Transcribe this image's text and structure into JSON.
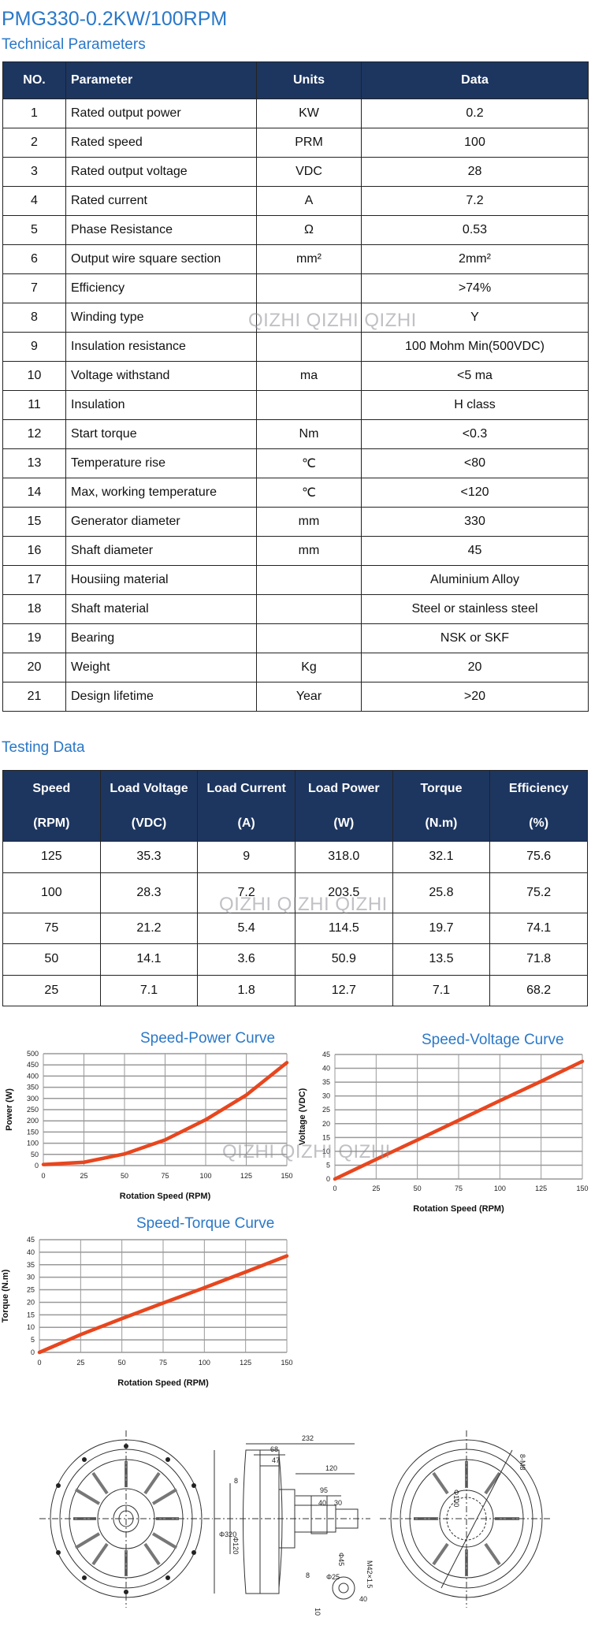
{
  "header": {
    "title": "PMG330-0.2KW/100RPM",
    "subtitle": "Technical Parameters"
  },
  "watermark": "QIZHI QIZHI QIZHI",
  "colors": {
    "title": "#2a78c8",
    "table_header": "#1d3660",
    "curve": "#e8461e"
  },
  "tech_table": {
    "columns": [
      "NO.",
      "Parameter",
      "Units",
      "Data"
    ],
    "rows": [
      [
        "1",
        "Rated output power",
        "KW",
        "0.2"
      ],
      [
        "2",
        "Rated speed",
        "PRM",
        "100"
      ],
      [
        "3",
        "Rated output voltage",
        "VDC",
        "28"
      ],
      [
        "4",
        "Rated current",
        "A",
        "7.2"
      ],
      [
        "5",
        "Phase Resistance",
        "Ω",
        "0.53"
      ],
      [
        "6",
        "Output wire square section",
        "mm²",
        "2mm²"
      ],
      [
        "7",
        "Efficiency",
        "",
        ">74%"
      ],
      [
        "8",
        "Winding type",
        "",
        "Y"
      ],
      [
        "9",
        "Insulation resistance",
        "",
        "100 Mohm Min(500VDC)"
      ],
      [
        "10",
        "Voltage withstand",
        "ma",
        "<5 ma"
      ],
      [
        "11",
        "Insulation",
        "",
        "H class"
      ],
      [
        "12",
        "Start torque",
        "Nm",
        "<0.3"
      ],
      [
        "13",
        "Temperature rise",
        "℃",
        "<80"
      ],
      [
        "14",
        "Max, working temperature",
        "℃",
        "<120"
      ],
      [
        "15",
        "Generator diameter",
        "mm",
        "330"
      ],
      [
        "16",
        "Shaft diameter",
        "mm",
        "45"
      ],
      [
        "17",
        "Housiing material",
        "",
        "Aluminium Alloy"
      ],
      [
        "18",
        "Shaft material",
        "",
        "Steel or stainless steel"
      ],
      [
        "19",
        "Bearing",
        "",
        "NSK or SKF"
      ],
      [
        "20",
        "Weight",
        "Kg",
        "20"
      ],
      [
        "21",
        "Design lifetime",
        "Year",
        ">20"
      ]
    ]
  },
  "testing": {
    "title": "Testing Data",
    "columns": [
      [
        "Speed",
        "(RPM)"
      ],
      [
        "Load Voltage",
        "(VDC)"
      ],
      [
        "Load Current",
        "(A)"
      ],
      [
        "Load Power",
        "(W)"
      ],
      [
        "Torque",
        "(N.m)"
      ],
      [
        "Efficiency",
        "(%)"
      ]
    ],
    "rows": [
      [
        "125",
        "35.3",
        "9",
        "318.0",
        "32.1",
        "75.6"
      ],
      [
        "100",
        "28.3",
        "7.2",
        "203.5",
        "25.8",
        "75.2"
      ],
      [
        "75",
        "21.2",
        "5.4",
        "114.5",
        "19.7",
        "74.1"
      ],
      [
        "50",
        "14.1",
        "3.6",
        "50.9",
        "13.5",
        "71.8"
      ],
      [
        "25",
        "7.1",
        "1.8",
        "12.7",
        "7.1",
        "68.2"
      ]
    ]
  },
  "chart_data": [
    {
      "type": "line",
      "title": "Speed-Power Curve",
      "xlabel": "Rotation Speed (RPM)",
      "ylabel": "Power (W)",
      "xlim": [
        0,
        150
      ],
      "ylim": [
        0,
        500
      ],
      "xticks": [
        0,
        25,
        50,
        75,
        100,
        125,
        150
      ],
      "yticks": [
        0,
        50,
        100,
        150,
        200,
        250,
        300,
        350,
        400,
        450,
        500
      ],
      "grid": true,
      "x": [
        0,
        25,
        50,
        75,
        100,
        125,
        150
      ],
      "y": [
        5,
        15,
        52,
        115,
        205,
        315,
        460
      ]
    },
    {
      "type": "line",
      "title": "Speed-Voltage Curve",
      "xlabel": "Rotation Speed (RPM)",
      "ylabel": "Voltage (VDC)",
      "xlim": [
        0,
        150
      ],
      "ylim": [
        0,
        45
      ],
      "xticks": [
        0,
        25,
        50,
        75,
        100,
        125,
        150
      ],
      "yticks": [
        0,
        5,
        10,
        15,
        20,
        25,
        30,
        35,
        40,
        45
      ],
      "grid": true,
      "x": [
        0,
        25,
        50,
        75,
        100,
        125,
        150
      ],
      "y": [
        0,
        7.1,
        14.1,
        21.2,
        28.3,
        35.3,
        42.5
      ]
    },
    {
      "type": "line",
      "title": "Speed-Torque Curve",
      "xlabel": "Rotation Speed (RPM)",
      "ylabel": "Torque (N.m)",
      "xlim": [
        0,
        150
      ],
      "ylim": [
        0,
        45
      ],
      "xticks": [
        0,
        25,
        50,
        75,
        100,
        125,
        150
      ],
      "yticks": [
        0,
        5,
        10,
        15,
        20,
        25,
        30,
        35,
        40,
        45
      ],
      "grid": true,
      "x": [
        0,
        25,
        50,
        75,
        100,
        125,
        150
      ],
      "y": [
        0,
        7.1,
        13.5,
        19.7,
        25.8,
        32.1,
        38.5
      ]
    }
  ],
  "drawing": {
    "dims": [
      "232",
      "68",
      "47",
      "120",
      "95",
      "40",
      "30",
      "8",
      "Φ320",
      "Φ120",
      "Φ45",
      "M42×1.5",
      "8",
      "Φ25",
      "10",
      "40",
      "Φ100",
      "8-M8"
    ]
  }
}
